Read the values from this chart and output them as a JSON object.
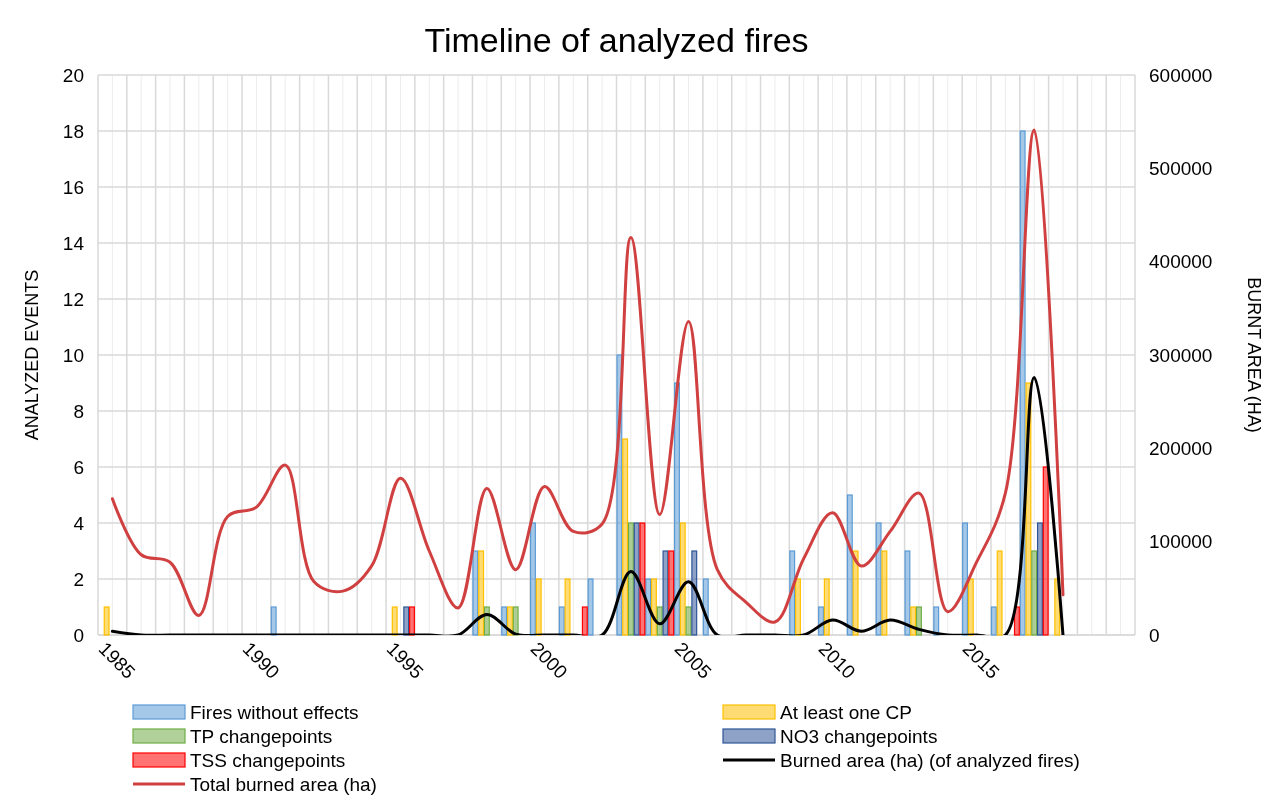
{
  "chart_data": {
    "type": "bar",
    "title": "Timeline of analyzed fires",
    "ylabel": "ANALYZED EVENTS",
    "y2label": "BURNT AREA (HA)",
    "categories": [
      "1985",
      null,
      null,
      null,
      null,
      "1990",
      null,
      null,
      null,
      null,
      "1995",
      null,
      null,
      null,
      null,
      "2000",
      null,
      null,
      null,
      null,
      "2005",
      null,
      null,
      null,
      null,
      "2010",
      null,
      null,
      null,
      null,
      "2015",
      null,
      null,
      null,
      null,
      null
    ],
    "ylim": [
      0,
      20
    ],
    "yticks": [
      0,
      2,
      4,
      6,
      8,
      10,
      12,
      14,
      16,
      18,
      20
    ],
    "y2lim": [
      0,
      600000
    ],
    "y2ticks": [
      0,
      100000,
      200000,
      300000,
      400000,
      500000,
      600000
    ],
    "grid": true,
    "legend": "bottom",
    "series": [
      {
        "name": "Fires without effects",
        "color": "#5b9bd5",
        "values": [
          null,
          null,
          null,
          null,
          null,
          null,
          1,
          null,
          null,
          null,
          null,
          null,
          null,
          3,
          1,
          4,
          1,
          2,
          10,
          2,
          9,
          2,
          null,
          null,
          3,
          1,
          5,
          4,
          3,
          1,
          4,
          1,
          18,
          null,
          null,
          null
        ]
      },
      {
        "name": "At least one CP",
        "color": "#ffc000",
        "values": [
          1,
          null,
          null,
          null,
          null,
          null,
          null,
          null,
          null,
          null,
          1,
          null,
          null,
          3,
          1,
          2,
          2,
          null,
          7,
          2,
          4,
          null,
          null,
          null,
          2,
          2,
          3,
          3,
          1,
          null,
          2,
          3,
          9,
          2,
          null,
          null
        ]
      },
      {
        "name": "TP changepoints",
        "color": "#70ad47",
        "values": [
          null,
          null,
          null,
          null,
          null,
          null,
          null,
          null,
          null,
          null,
          null,
          null,
          null,
          1,
          1,
          null,
          null,
          null,
          4,
          1,
          1,
          null,
          null,
          null,
          null,
          null,
          null,
          null,
          1,
          null,
          null,
          null,
          3,
          null,
          null,
          null
        ]
      },
      {
        "name": "NO3 changepoints",
        "color": "#2f5597",
        "values": [
          null,
          null,
          null,
          null,
          null,
          null,
          null,
          null,
          null,
          null,
          1,
          null,
          null,
          null,
          null,
          null,
          null,
          null,
          4,
          3,
          3,
          null,
          null,
          null,
          null,
          null,
          null,
          null,
          null,
          null,
          null,
          null,
          4,
          null,
          null,
          null
        ]
      },
      {
        "name": "TSS changepoints",
        "color": "#ff0000",
        "values": [
          null,
          null,
          null,
          null,
          null,
          null,
          null,
          null,
          null,
          null,
          1,
          null,
          null,
          null,
          null,
          null,
          1,
          null,
          4,
          3,
          null,
          null,
          null,
          null,
          null,
          null,
          null,
          null,
          null,
          null,
          null,
          1,
          6,
          null,
          null,
          null
        ]
      },
      {
        "name": "Burned area (ha) (of analyzed fires)",
        "type": "line",
        "axis": "y2",
        "color": "#000000",
        "values": [
          4000,
          0,
          0,
          0,
          0,
          0,
          0,
          0,
          0,
          0,
          0,
          0,
          0,
          22000,
          1000,
          0,
          0,
          0,
          68000,
          12000,
          57000,
          0,
          0,
          0,
          0,
          16000,
          4000,
          16000,
          6000,
          0,
          0,
          0,
          276000,
          0,
          null,
          null
        ]
      },
      {
        "name": "Total burned area (ha)",
        "type": "line",
        "axis": "y2",
        "color": "#d04040",
        "values": [
          146000,
          86000,
          78000,
          21000,
          127000,
          137000,
          182000,
          57000,
          47000,
          74000,
          168000,
          90000,
          29000,
          157000,
          70000,
          159000,
          111000,
          119000,
          426000,
          129000,
          336000,
          70000,
          35000,
          14000,
          82000,
          131000,
          74000,
          111000,
          152000,
          25000,
          78000,
          152000,
          541000,
          43000,
          null,
          null
        ]
      }
    ]
  }
}
